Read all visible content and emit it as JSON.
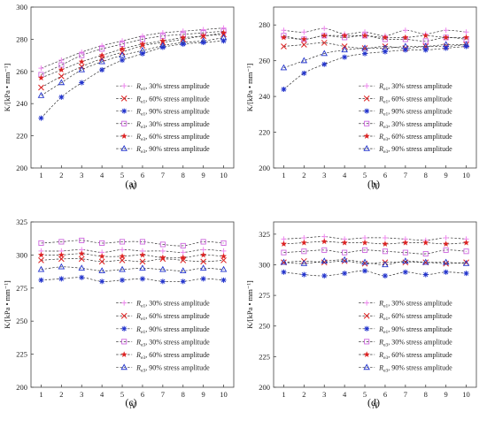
{
  "legend_suffixes": [
    "30% stress amplitude",
    "60% stress amplitude",
    "90% stress amplitude",
    "30% stress amplitude",
    "60% stress amplitude",
    "90% stress amplitude"
  ],
  "legend_subscripts": [
    "e1",
    "e1",
    "e1",
    "e3",
    "e3",
    "e3"
  ],
  "legend_symbol": "R",
  "series_colors": [
    "#ee88ee",
    "#dd2222",
    "#2233cc",
    "#cc66dd",
    "#dd2222",
    "#2233cc"
  ],
  "chart_data": [
    {
      "type": "line",
      "panel_label": "(a)",
      "xlabel": "N",
      "ylabel": "K/[kPa • mm⁻¹]",
      "x": [
        1,
        2,
        3,
        4,
        5,
        6,
        7,
        8,
        9,
        10
      ],
      "ylim": [
        200,
        300
      ],
      "yticks": [
        200,
        220,
        240,
        260,
        280,
        300
      ],
      "legend_position": "bottom-right",
      "series": [
        {
          "name": "Re1, 30% stress amplitude",
          "values": [
            262,
            267,
            272,
            276,
            279,
            282,
            284,
            285,
            286,
            287
          ]
        },
        {
          "name": "Re1, 60% stress amplitude",
          "values": [
            250,
            257,
            263,
            268,
            272,
            276,
            278,
            280,
            282,
            283
          ]
        },
        {
          "name": "Re1, 90% stress amplitude",
          "values": [
            231,
            244,
            253,
            261,
            267,
            271,
            275,
            277,
            278,
            279
          ]
        },
        {
          "name": "Re3, 30% stress amplitude",
          "values": [
            258,
            264,
            270,
            274,
            277,
            280,
            282,
            283,
            284,
            285
          ]
        },
        {
          "name": "Re3, 60% stress amplitude",
          "values": [
            256,
            261,
            266,
            270,
            274,
            277,
            279,
            281,
            282,
            284
          ]
        },
        {
          "name": "Re3, 90% stress amplitude",
          "values": [
            245,
            253,
            261,
            266,
            270,
            273,
            276,
            278,
            279,
            281
          ]
        }
      ]
    },
    {
      "type": "line",
      "panel_label": "(b)",
      "xlabel": "N",
      "ylabel": "K/[kPa • mm⁻¹]",
      "x": [
        1,
        2,
        3,
        4,
        5,
        6,
        7,
        8,
        9,
        10
      ],
      "ylim": [
        200,
        290
      ],
      "yticks": [
        200,
        220,
        240,
        260,
        280
      ],
      "legend_position": "bottom-right",
      "series": [
        {
          "name": "Re1, 30% stress amplitude",
          "values": [
            277,
            276,
            278,
            275,
            276,
            274,
            277,
            275,
            277,
            276
          ]
        },
        {
          "name": "Re1, 60% stress amplitude",
          "values": [
            268,
            269,
            270,
            268,
            267,
            268,
            267,
            268,
            268,
            269
          ]
        },
        {
          "name": "Re1, 90% stress amplitude",
          "values": [
            244,
            253,
            258,
            262,
            264,
            265,
            266,
            266,
            267,
            268
          ]
        },
        {
          "name": "Re3, 30% stress amplitude",
          "values": [
            274,
            272,
            274,
            273,
            274,
            272,
            272,
            271,
            273,
            272
          ]
        },
        {
          "name": "Re3, 60% stress amplitude",
          "values": [
            273,
            272,
            274,
            274,
            274,
            273,
            273,
            274,
            273,
            273
          ]
        },
        {
          "name": "Re3, 90% stress amplitude",
          "values": [
            256,
            260,
            264,
            266,
            267,
            267,
            268,
            268,
            269,
            269
          ]
        }
      ]
    },
    {
      "type": "line",
      "panel_label": "(c)",
      "xlabel": "N",
      "ylabel": "K/[kPa • mm⁻¹]",
      "x": [
        1,
        2,
        3,
        4,
        5,
        6,
        7,
        8,
        9,
        10
      ],
      "ylim": [
        200,
        325
      ],
      "yticks": [
        200,
        225,
        250,
        275,
        300,
        325
      ],
      "legend_position": "bottom-right",
      "series": [
        {
          "name": "Re1, 30% stress amplitude",
          "values": [
            303,
            303,
            304,
            302,
            304,
            303,
            303,
            302,
            304,
            303
          ]
        },
        {
          "name": "Re1, 60% stress amplitude",
          "values": [
            296,
            297,
            297,
            295,
            296,
            295,
            297,
            296,
            295,
            296
          ]
        },
        {
          "name": "Re1, 90% stress amplitude",
          "values": [
            281,
            282,
            283,
            280,
            281,
            282,
            280,
            280,
            282,
            281
          ]
        },
        {
          "name": "Re3, 30% stress amplitude",
          "values": [
            309,
            310,
            311,
            309,
            310,
            310,
            308,
            307,
            310,
            309
          ]
        },
        {
          "name": "Re3, 60% stress amplitude",
          "values": [
            300,
            300,
            301,
            299,
            299,
            300,
            298,
            298,
            300,
            299
          ]
        },
        {
          "name": "Re3, 90% stress amplitude",
          "values": [
            289,
            291,
            290,
            288,
            289,
            290,
            289,
            288,
            290,
            289
          ]
        }
      ]
    },
    {
      "type": "line",
      "panel_label": "(d)",
      "xlabel": "N",
      "ylabel": "K/[kPa • mm⁻¹]",
      "x": [
        1,
        2,
        3,
        4,
        5,
        6,
        7,
        8,
        9,
        10
      ],
      "ylim": [
        200,
        335
      ],
      "yticks": [
        200,
        225,
        250,
        275,
        300,
        325
      ],
      "legend_position": "bottom-right",
      "series": [
        {
          "name": "Re1, 30% stress amplitude",
          "values": [
            321,
            322,
            323,
            321,
            322,
            322,
            321,
            320,
            322,
            321
          ]
        },
        {
          "name": "Re1, 60% stress amplitude",
          "values": [
            302,
            303,
            302,
            303,
            301,
            302,
            302,
            302,
            301,
            302
          ]
        },
        {
          "name": "Re1, 90% stress amplitude",
          "values": [
            294,
            292,
            291,
            293,
            295,
            291,
            294,
            292,
            294,
            293
          ]
        },
        {
          "name": "Re3, 30% stress amplitude",
          "values": [
            310,
            311,
            312,
            310,
            312,
            311,
            310,
            309,
            312,
            311
          ]
        },
        {
          "name": "Re3, 60% stress amplitude",
          "values": [
            317,
            318,
            319,
            318,
            318,
            317,
            318,
            318,
            317,
            318
          ]
        },
        {
          "name": "Re3, 90% stress amplitude",
          "values": [
            302,
            301,
            303,
            304,
            302,
            300,
            303,
            302,
            302,
            301
          ]
        }
      ]
    }
  ]
}
